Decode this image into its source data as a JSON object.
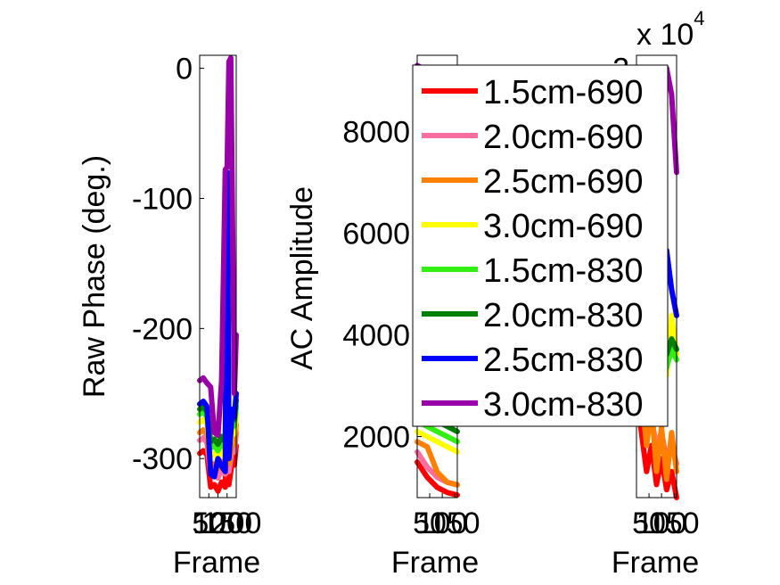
{
  "figure": {
    "background": "#ffffff"
  },
  "chart_data": [
    {
      "type": "line",
      "ylabel": "Raw Phase (deg.)",
      "xlabel": "Frame",
      "ylim": [
        -330,
        10
      ],
      "yticks": [
        "0",
        "-100",
        "-200",
        "-300"
      ],
      "xticks": [
        "50",
        "100",
        "150",
        "200"
      ],
      "xlim": [
        0,
        200
      ],
      "series": [
        {
          "name": "1.5cm-690",
          "color": "#ff0000",
          "x": [
            0,
            20,
            40,
            60,
            80,
            100,
            120,
            140,
            150,
            160,
            170,
            180,
            190,
            200
          ],
          "y": [
            -296,
            -294,
            -297,
            -322,
            -320,
            -325,
            -318,
            -322,
            -110,
            -320,
            -310,
            -300,
            -305,
            -290
          ]
        },
        {
          "name": "2.0cm-690",
          "color": "#ff6ea0",
          "x": [
            0,
            20,
            40,
            60,
            80,
            100,
            120,
            140,
            150,
            160,
            170,
            180,
            190,
            200
          ],
          "y": [
            -286,
            -284,
            -288,
            -312,
            -310,
            -315,
            -308,
            -312,
            -100,
            -310,
            -300,
            -290,
            -295,
            -280
          ]
        },
        {
          "name": "2.5cm-690",
          "color": "#ff8000",
          "x": [
            0,
            20,
            40,
            60,
            80,
            100,
            120,
            140,
            150,
            160,
            170,
            180,
            190,
            200
          ],
          "y": [
            -280,
            -278,
            -282,
            -306,
            -304,
            -308,
            -302,
            -306,
            -95,
            -304,
            -294,
            -284,
            -289,
            -274
          ]
        },
        {
          "name": "3.0cm-690",
          "color": "#ffff00",
          "x": [
            0,
            20,
            40,
            60,
            80,
            100,
            120,
            140,
            150,
            160,
            170,
            180,
            190,
            200
          ],
          "y": [
            -272,
            -270,
            -274,
            -298,
            -296,
            -300,
            -294,
            -298,
            -90,
            -296,
            -286,
            -276,
            -281,
            -266
          ]
        },
        {
          "name": "1.5cm-830",
          "color": "#33ee11",
          "x": [
            0,
            20,
            40,
            60,
            80,
            100,
            120,
            140,
            150,
            160,
            170,
            180,
            190,
            200
          ],
          "y": [
            -266,
            -264,
            -268,
            -292,
            -290,
            -294,
            -288,
            -292,
            -88,
            -290,
            -280,
            -270,
            -275,
            -260
          ]
        },
        {
          "name": "2.0cm-830",
          "color": "#008000",
          "x": [
            0,
            20,
            40,
            60,
            80,
            100,
            120,
            140,
            150,
            160,
            170,
            180,
            190,
            200
          ],
          "y": [
            -262,
            -260,
            -264,
            -287,
            -285,
            -289,
            -283,
            -287,
            -85,
            -285,
            -275,
            -265,
            -270,
            -255
          ]
        },
        {
          "name": "2.5cm-830",
          "color": "#0000ff",
          "x": [
            0,
            20,
            40,
            60,
            80,
            100,
            120,
            140,
            150,
            160,
            170,
            180,
            190,
            200
          ],
          "y": [
            -258,
            -256,
            -260,
            -312,
            -314,
            -300,
            -306,
            -310,
            -80,
            -300,
            -280,
            -262,
            -268,
            -250
          ]
        },
        {
          "name": "3.0cm-830",
          "color": "#9900a8",
          "x": [
            0,
            20,
            40,
            60,
            80,
            100,
            120,
            140,
            150,
            160,
            170,
            180,
            190,
            200
          ],
          "y": [
            -240,
            -238,
            -242,
            -245,
            -280,
            -282,
            -240,
            -78,
            -76,
            5,
            8,
            -120,
            -250,
            -205
          ]
        }
      ]
    },
    {
      "type": "line",
      "ylabel": "AC Amplitude",
      "xlabel": "Frame",
      "ylim": [
        800,
        9500
      ],
      "yticks": [
        "2000",
        "4000",
        "6000",
        "8000"
      ],
      "xticks": [
        "50",
        "100",
        "150"
      ],
      "xlim": [
        0,
        160
      ],
      "series": [
        {
          "name": "1.5cm-690",
          "color": "#ff0000",
          "x": [
            0,
            40,
            80,
            120,
            160
          ],
          "y": [
            1500,
            1200,
            1000,
            900,
            850
          ]
        },
        {
          "name": "2.0cm-690",
          "color": "#ff6ea0",
          "x": [
            0,
            40,
            80,
            120,
            160
          ],
          "y": [
            1700,
            1400,
            1200,
            1100,
            1050
          ]
        },
        {
          "name": "2.5cm-690",
          "color": "#ff8000",
          "x": [
            0,
            40,
            80,
            120,
            160
          ],
          "y": [
            1900,
            1800,
            1300,
            1100,
            1050
          ]
        },
        {
          "name": "3.0cm-690",
          "color": "#ffff00",
          "x": [
            0,
            40,
            80,
            120,
            160
          ],
          "y": [
            2100,
            2000,
            1900,
            1800,
            1700
          ]
        },
        {
          "name": "1.5cm-830",
          "color": "#33ee11",
          "x": [
            0,
            40,
            80,
            120,
            160
          ],
          "y": [
            2300,
            2200,
            2100,
            2000,
            1900
          ]
        },
        {
          "name": "2.0cm-830",
          "color": "#008000",
          "x": [
            0,
            40,
            80,
            120,
            160
          ],
          "y": [
            2500,
            2400,
            2300,
            2200,
            2100
          ]
        },
        {
          "name": "2.5cm-830",
          "color": "#0000ff",
          "x": [
            0,
            40,
            80,
            120,
            160
          ],
          "y": [
            2700,
            2600,
            2500,
            2400,
            2300
          ]
        },
        {
          "name": "3.0cm-830",
          "color": "#9900a8",
          "x": [
            0,
            40,
            80,
            120,
            160
          ],
          "y": [
            9300,
            9200,
            9100,
            9000,
            8900
          ]
        }
      ]
    },
    {
      "type": "line",
      "ylabel": "",
      "xlabel": "Frame",
      "multiplier": "x 10",
      "exponent": "4",
      "ylim": [
        0.35,
        2.05
      ],
      "yticks": [
        "2"
      ],
      "xticks": [
        "50",
        "100",
        "150"
      ],
      "xlim": [
        0,
        160
      ],
      "series": [
        {
          "name": "1.5cm-690",
          "color": "#ff0000",
          "x": [
            0,
            20,
            40,
            60,
            80,
            100,
            120,
            140,
            160
          ],
          "y": [
            0.75,
            0.6,
            0.45,
            0.55,
            0.4,
            0.5,
            0.38,
            0.45,
            0.35
          ]
        },
        {
          "name": "2.0cm-690",
          "color": "#ff6ea0",
          "x": [
            0,
            20,
            40,
            60,
            80,
            100,
            120,
            140,
            160
          ],
          "y": [
            0.85,
            0.7,
            0.6,
            0.65,
            0.55,
            0.6,
            0.5,
            0.55,
            0.48
          ]
        },
        {
          "name": "2.5cm-690",
          "color": "#ff8000",
          "x": [
            0,
            20,
            40,
            60,
            80,
            100,
            120,
            140,
            160
          ],
          "y": [
            0.9,
            0.75,
            0.55,
            0.7,
            0.45,
            0.62,
            0.42,
            0.6,
            0.45
          ]
        },
        {
          "name": "3.0cm-690",
          "color": "#ffff00",
          "x": [
            0,
            20,
            40,
            60,
            80,
            100,
            120,
            140,
            160
          ],
          "y": [
            0.95,
            0.85,
            0.8,
            0.85,
            0.78,
            1.1,
            0.82,
            1.05,
            0.9
          ]
        },
        {
          "name": "1.5cm-830",
          "color": "#33ee11",
          "x": [
            0,
            20,
            40,
            60,
            80,
            100,
            120,
            140,
            160
          ],
          "y": [
            0.92,
            0.88,
            0.82,
            0.86,
            0.8,
            0.95,
            0.85,
            0.92,
            0.88
          ]
        },
        {
          "name": "2.0cm-830",
          "color": "#008000",
          "x": [
            0,
            20,
            40,
            60,
            80,
            100,
            120,
            140,
            160
          ],
          "y": [
            0.9,
            0.9,
            0.88,
            0.92,
            0.86,
            0.98,
            0.9,
            0.96,
            0.92
          ]
        },
        {
          "name": "2.5cm-830",
          "color": "#0000ff",
          "x": [
            0,
            20,
            40,
            60,
            80,
            100,
            120,
            140,
            160
          ],
          "y": [
            0.98,
            0.96,
            0.95,
            1.0,
            0.95,
            1.2,
            1.3,
            1.15,
            1.05
          ]
        },
        {
          "name": "3.0cm-830",
          "color": "#9900a8",
          "x": [
            0,
            20,
            40,
            60,
            80,
            100,
            120,
            140,
            160
          ],
          "y": [
            1.1,
            1.2,
            1.3,
            1.4,
            1.5,
            1.65,
            2.0,
            1.9,
            1.6
          ]
        }
      ]
    }
  ],
  "legend": {
    "placement": "top-right of middle panel",
    "entries": [
      {
        "label": "1.5cm-690",
        "color": "#ff0000"
      },
      {
        "label": "2.0cm-690",
        "color": "#ff6ea0"
      },
      {
        "label": "2.5cm-690",
        "color": "#ff8000"
      },
      {
        "label": "3.0cm-690",
        "color": "#ffff00"
      },
      {
        "label": "1.5cm-830",
        "color": "#33ee11"
      },
      {
        "label": "2.0cm-830",
        "color": "#008000"
      },
      {
        "label": "2.5cm-830",
        "color": "#0000ff"
      },
      {
        "label": "3.0cm-830",
        "color": "#9900a8"
      }
    ]
  }
}
